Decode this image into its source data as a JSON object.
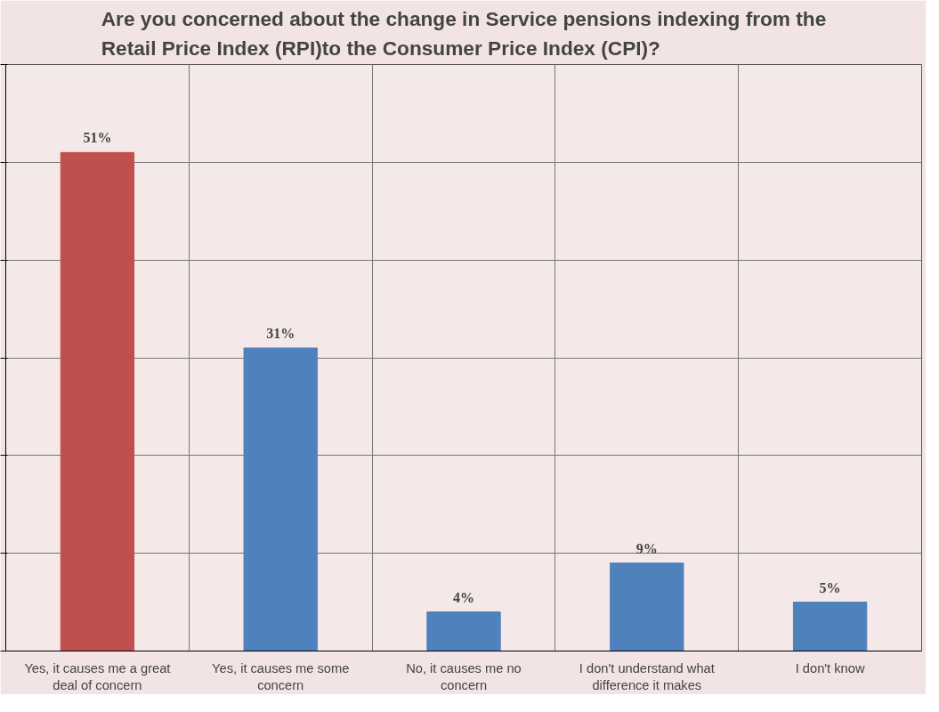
{
  "chart_data": {
    "type": "bar",
    "title": "Are you concerned about the change in Service pensions indexing from the Retail Price Index (RPI)to the Consumer Price Index (CPI)?",
    "categories": [
      "Yes, it causes me a great deal of concern",
      "Yes, it causes me some concern",
      "No, it causes me no concern",
      "I don't understand what difference it makes",
      "I don't know"
    ],
    "values": [
      51,
      31,
      4,
      9,
      5
    ],
    "colors": [
      "#c0504d",
      "#4f81bd",
      "#4f81bd",
      "#4f81bd",
      "#4f81bd"
    ],
    "value_labels": [
      "51%",
      "31%",
      "4%",
      "9%",
      "5%"
    ],
    "ylim": [
      0,
      60
    ],
    "yticks": [
      {
        "value": 0,
        "label": null
      },
      {
        "value": 10,
        "label": null
      },
      {
        "value": 20,
        "label": null
      },
      {
        "value": 30,
        "label": null
      },
      {
        "value": 40,
        "label": null
      },
      {
        "value": 50,
        "label": null
      },
      {
        "value": 60,
        "label": null
      }
    ],
    "tick_labels": "x",
    "grid": true
  }
}
